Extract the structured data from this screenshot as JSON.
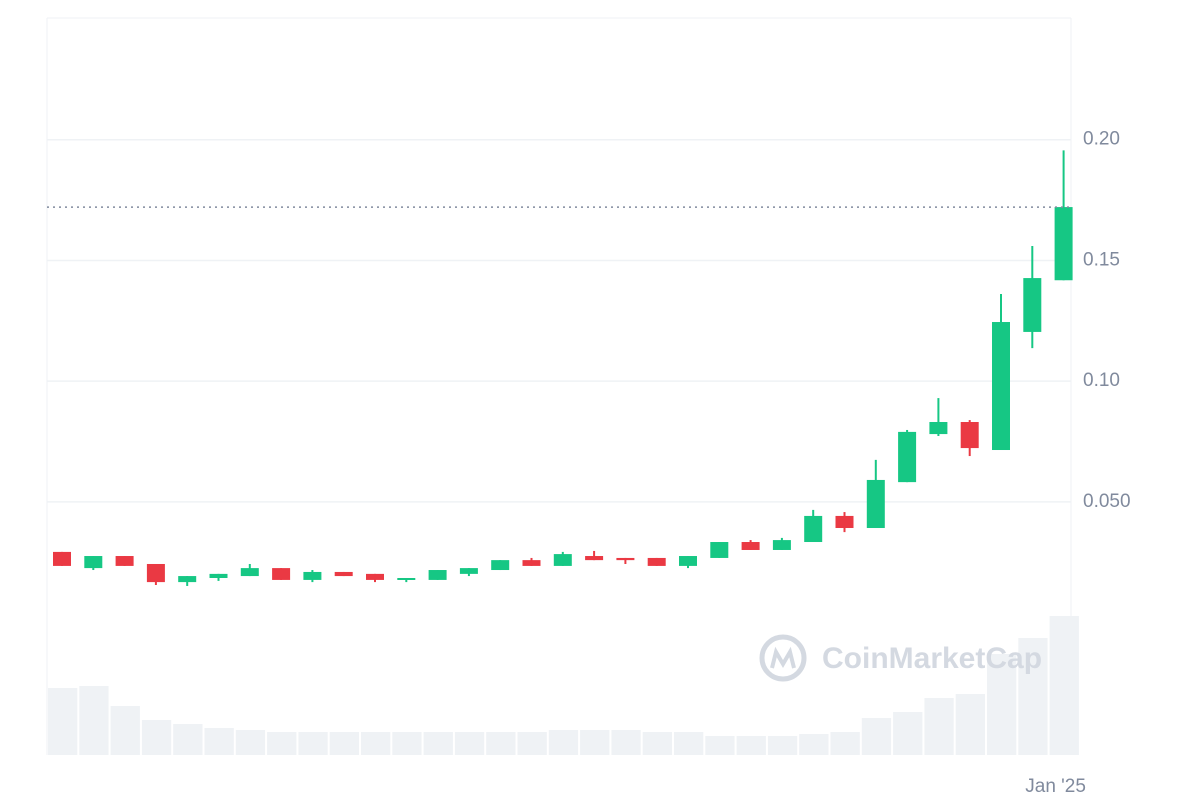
{
  "chart_data": {
    "type": "candlestick",
    "categories": [
      null,
      null,
      null,
      null,
      null,
      null,
      null,
      null,
      null,
      null,
      null,
      null,
      null,
      null,
      null,
      null,
      null,
      null,
      null,
      null,
      null,
      null,
      null,
      null,
      null,
      null,
      null,
      null,
      null,
      null,
      null,
      null,
      "Jan '25"
    ],
    "open": [
      0.0293,
      0.0226,
      0.0276,
      0.0243,
      0.0168,
      0.0185,
      0.0193,
      0.0226,
      0.0177,
      0.021,
      0.0202,
      0.0177,
      0.0177,
      0.0202,
      0.0218,
      0.0259,
      0.0235,
      0.0276,
      0.0268,
      0.0268,
      0.0235,
      0.0268,
      0.0334,
      0.0301,
      0.0334,
      0.0442,
      0.0392,
      0.0582,
      0.0781,
      0.0831,
      0.0715,
      0.1204,
      0.1418
    ],
    "high": [
      0.0293,
      0.0276,
      0.0276,
      0.0243,
      0.0193,
      0.0202,
      0.0243,
      0.0226,
      0.0218,
      0.021,
      0.0202,
      0.0185,
      0.0218,
      0.0226,
      0.0259,
      0.0268,
      0.0293,
      0.0297,
      0.0268,
      0.0268,
      0.0276,
      0.0334,
      0.0342,
      0.0351,
      0.0467,
      0.0458,
      0.0674,
      0.0798,
      0.093,
      0.0839,
      0.1361,
      0.156,
      0.1956
    ],
    "low": [
      0.0235,
      0.0218,
      0.0235,
      0.0156,
      0.0152,
      0.0173,
      0.0193,
      0.0177,
      0.0168,
      0.0193,
      0.0168,
      0.0168,
      0.0177,
      0.0193,
      0.0218,
      0.0235,
      0.0235,
      0.0259,
      0.0243,
      0.0235,
      0.0226,
      0.0268,
      0.0301,
      0.0301,
      0.0334,
      0.0375,
      0.0392,
      0.0582,
      0.0773,
      0.069,
      0.0715,
      0.1137,
      0.1418
    ],
    "close": [
      0.0235,
      0.0276,
      0.0235,
      0.0168,
      0.0193,
      0.0202,
      0.0226,
      0.0177,
      0.021,
      0.0193,
      0.0177,
      0.0185,
      0.0218,
      0.0226,
      0.0259,
      0.0235,
      0.0284,
      0.0259,
      0.0259,
      0.0235,
      0.0276,
      0.0334,
      0.0301,
      0.0342,
      0.0442,
      0.0392,
      0.0591,
      0.079,
      0.0831,
      0.0723,
      0.1245,
      0.1427,
      0.1721
    ],
    "volume": [
      67,
      69,
      49,
      35,
      31,
      27,
      25,
      23,
      23,
      23,
      23,
      23,
      23,
      23,
      23,
      23,
      25,
      25,
      25,
      23,
      23,
      19,
      19,
      19,
      21,
      23,
      37,
      43,
      57,
      61,
      101,
      117,
      139
    ],
    "ylim": [
      -0.0548,
      0.2504
    ],
    "yticks": [
      {
        "value": 0.05,
        "label": "0.050"
      },
      {
        "value": 0.1,
        "label": "0.10"
      },
      {
        "value": 0.15,
        "label": "0.15"
      },
      {
        "value": 0.2,
        "label": "0.20"
      }
    ],
    "grid": true,
    "up_color": "#16c784",
    "down_color": "#ea3943",
    "volume_color": "#eff2f5",
    "watermark": "CoinMarketCap"
  }
}
